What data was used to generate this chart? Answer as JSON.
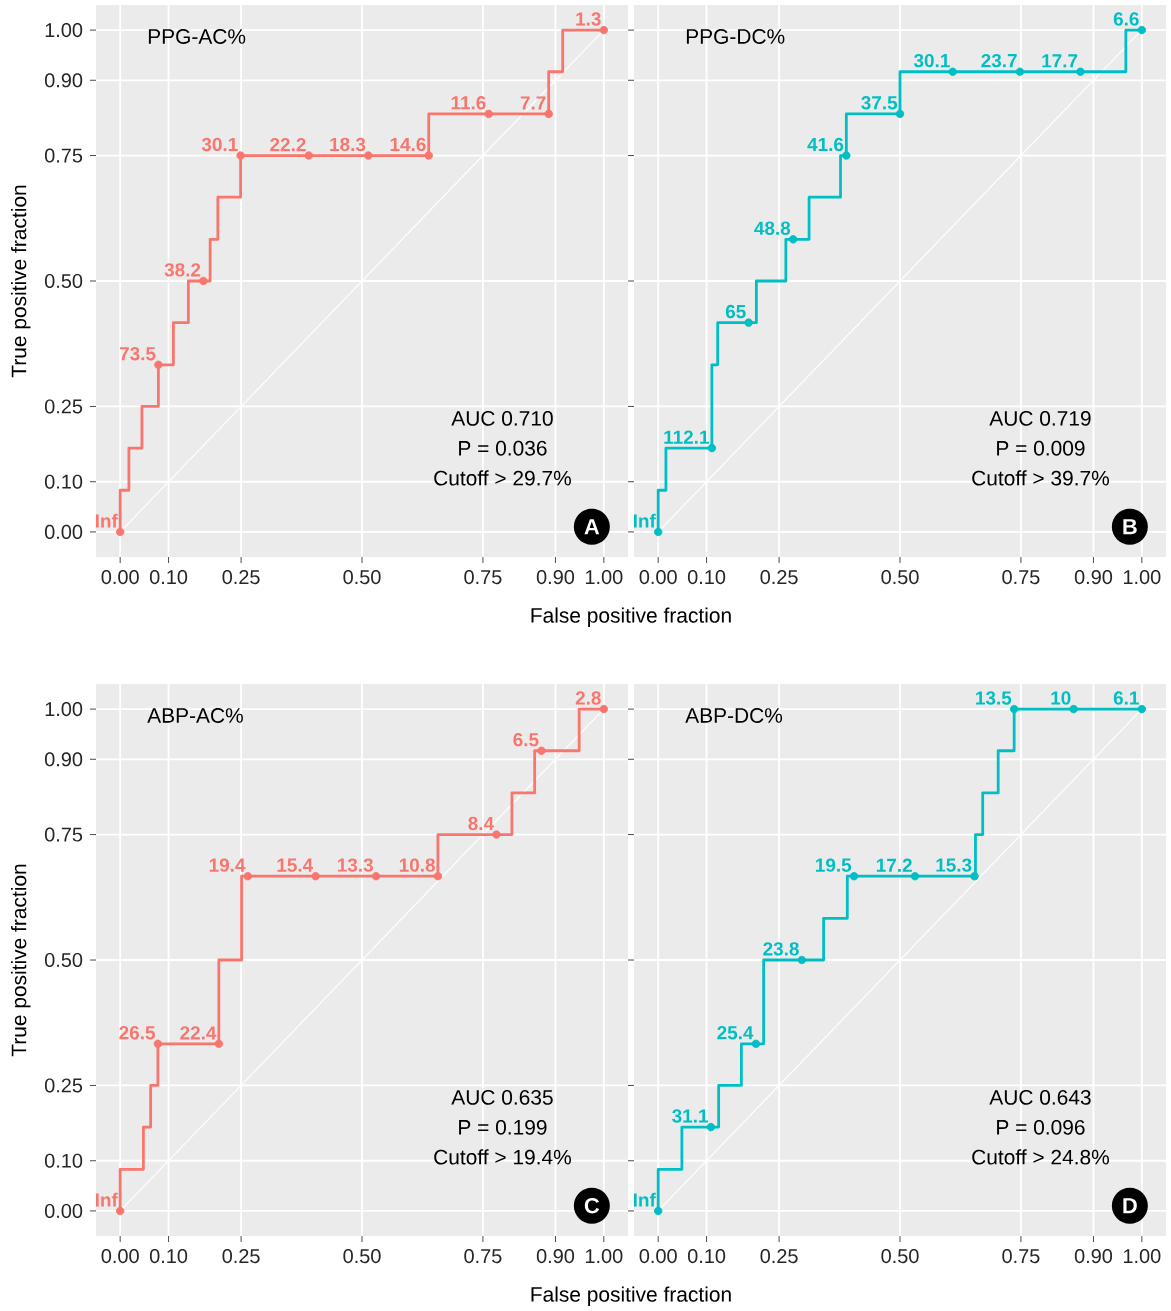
{
  "chart_data": [
    {
      "type": "step",
      "title": "PPG-AC%",
      "xlabel": "False positive fraction",
      "ylabel": "True positive fraction",
      "xlim": [
        -0.05,
        1.05
      ],
      "ylim": [
        -0.05,
        1.05
      ],
      "xticks": [
        {
          "value": 0,
          "label": "0.00"
        },
        {
          "value": 0.1,
          "label": "0.10"
        },
        {
          "value": 0.25,
          "label": "0.25"
        },
        {
          "value": 0.5,
          "label": "0.50"
        },
        {
          "value": 0.75,
          "label": "0.75"
        },
        {
          "value": 0.9,
          "label": "0.90"
        },
        {
          "value": 1,
          "label": "1.00"
        }
      ],
      "yticks": [
        {
          "value": 0,
          "label": "0.00"
        },
        {
          "value": 0.1,
          "label": "0.10"
        },
        {
          "value": 0.25,
          "label": "0.25"
        },
        {
          "value": 0.5,
          "label": "0.50"
        },
        {
          "value": 0.75,
          "label": "0.75"
        },
        {
          "value": 0.9,
          "label": "0.90"
        },
        {
          "value": 1,
          "label": "1.00"
        }
      ],
      "grid": true,
      "annotations": [
        "AUC 0.710",
        "P = 0.036",
        "Cutoff > 29.7%",
        "A",
        {
          "text": "Inf",
          "x": 0,
          "y": 0
        },
        {
          "text": "73.5",
          "x": 0.079,
          "y": 0.333
        },
        {
          "text": "38.2",
          "x": 0.172,
          "y": 0.5
        },
        {
          "text": "30.1",
          "x": 0.249,
          "y": 0.75
        },
        {
          "text": "22.2",
          "x": 0.39,
          "y": 0.75
        },
        {
          "text": "18.3",
          "x": 0.513,
          "y": 0.75
        },
        {
          "text": "14.6",
          "x": 0.638,
          "y": 0.75
        },
        {
          "text": "11.6",
          "x": 0.762,
          "y": 0.833
        },
        {
          "text": "7.7",
          "x": 0.886,
          "y": 0.833
        },
        {
          "text": "1.3",
          "x": 1,
          "y": 1
        }
      ],
      "series": [
        {
          "type": "line",
          "color": "#ffffff",
          "x": [
            0,
            1
          ],
          "values": [
            0,
            1
          ]
        },
        {
          "color": "#f8766d",
          "x": [
            0,
            0.018,
            0.045,
            0.079,
            0.11,
            0.141,
            0.186,
            0.202,
            0.249,
            0.638,
            0.886,
            0.915,
            1
          ],
          "values": [
            0,
            0.083,
            0.167,
            0.25,
            0.333,
            0.417,
            0.5,
            0.583,
            0.667,
            0.75,
            0.833,
            0.917,
            1
          ]
        },
        {
          "type": "scatter",
          "marker": "circle",
          "color": "#f8766d",
          "x": [
            0,
            0.079,
            0.172,
            0.249,
            0.39,
            0.513,
            0.638,
            0.762,
            0.886,
            1
          ],
          "values": [
            0,
            0.333,
            0.5,
            0.75,
            0.75,
            0.75,
            0.75,
            0.833,
            0.833,
            1
          ]
        }
      ]
    },
    {
      "type": "step",
      "title": "PPG-DC%",
      "xlim": [
        -0.05,
        1.05
      ],
      "ylim": [
        -0.05,
        1.05
      ],
      "tick_labels": "x",
      "xticks": [
        {
          "value": 0,
          "label": "0.00"
        },
        {
          "value": 0.1,
          "label": "0.10"
        },
        {
          "value": 0.25,
          "label": "0.25"
        },
        {
          "value": 0.5,
          "label": "0.50"
        },
        {
          "value": 0.75,
          "label": "0.75"
        },
        {
          "value": 0.9,
          "label": "0.90"
        },
        {
          "value": 1,
          "label": "1.00"
        }
      ],
      "yticks": [
        {
          "value": 0,
          "label": null
        },
        {
          "value": 0.1,
          "label": null
        },
        {
          "value": 0.25,
          "label": null
        },
        {
          "value": 0.5,
          "label": null
        },
        {
          "value": 0.75,
          "label": null
        },
        {
          "value": 0.9,
          "label": null
        },
        {
          "value": 1,
          "label": null
        }
      ],
      "grid": true,
      "annotations": [
        "AUC 0.719",
        "P = 0.009",
        "Cutoff > 39.7%",
        "B",
        {
          "text": "Inf",
          "x": 0,
          "y": 0
        },
        {
          "text": "112.1",
          "x": 0.111,
          "y": 0.167
        },
        {
          "text": "65",
          "x": 0.187,
          "y": 0.417
        },
        {
          "text": "48.8",
          "x": 0.279,
          "y": 0.583
        },
        {
          "text": "41.6",
          "x": 0.389,
          "y": 0.75
        },
        {
          "text": "37.5",
          "x": 0.5,
          "y": 0.833
        },
        {
          "text": "30.1",
          "x": 0.609,
          "y": 0.917
        },
        {
          "text": "23.7",
          "x": 0.748,
          "y": 0.917
        },
        {
          "text": "17.7",
          "x": 0.873,
          "y": 0.917
        },
        {
          "text": "6.6",
          "x": 1,
          "y": 1
        }
      ],
      "series": [
        {
          "type": "line",
          "color": "#ffffff",
          "x": [
            0,
            1
          ],
          "values": [
            0,
            1
          ]
        },
        {
          "color": "#00bfc4",
          "x": [
            0,
            0.016,
            0.111,
            0.123,
            0.203,
            0.264,
            0.312,
            0.377,
            0.389,
            0.5,
            0.967,
            1
          ],
          "values": [
            0,
            0.083,
            0.167,
            0.333,
            0.417,
            0.5,
            0.583,
            0.667,
            0.75,
            0.833,
            0.917,
            1
          ]
        },
        {
          "type": "scatter",
          "marker": "circle",
          "color": "#00bfc4",
          "x": [
            0,
            0.111,
            0.187,
            0.279,
            0.389,
            0.5,
            0.609,
            0.748,
            0.873,
            1
          ],
          "values": [
            0,
            0.167,
            0.417,
            0.583,
            0.75,
            0.833,
            0.917,
            0.917,
            0.917,
            1
          ]
        }
      ]
    },
    {
      "type": "step",
      "title": "ABP-AC%",
      "xlabel": "False positive fraction",
      "ylabel": "True positive fraction",
      "xlim": [
        -0.05,
        1.05
      ],
      "ylim": [
        -0.05,
        1.05
      ],
      "xticks": [
        {
          "value": 0,
          "label": "0.00"
        },
        {
          "value": 0.1,
          "label": "0.10"
        },
        {
          "value": 0.25,
          "label": "0.25"
        },
        {
          "value": 0.5,
          "label": "0.50"
        },
        {
          "value": 0.75,
          "label": "0.75"
        },
        {
          "value": 0.9,
          "label": "0.90"
        },
        {
          "value": 1,
          "label": "1.00"
        }
      ],
      "yticks": [
        {
          "value": 0,
          "label": "0.00"
        },
        {
          "value": 0.1,
          "label": "0.10"
        },
        {
          "value": 0.25,
          "label": "0.25"
        },
        {
          "value": 0.5,
          "label": "0.50"
        },
        {
          "value": 0.75,
          "label": "0.75"
        },
        {
          "value": 0.9,
          "label": "0.90"
        },
        {
          "value": 1,
          "label": "1.00"
        }
      ],
      "grid": true,
      "annotations": [
        "AUC 0.635",
        "P = 0.199",
        "Cutoff > 19.4%",
        "C",
        {
          "text": "Inf",
          "x": 0,
          "y": 0
        },
        {
          "text": "26.5",
          "x": 0.078,
          "y": 0.333
        },
        {
          "text": "22.4",
          "x": 0.204,
          "y": 0.333
        },
        {
          "text": "19.4",
          "x": 0.264,
          "y": 0.667
        },
        {
          "text": "15.4",
          "x": 0.404,
          "y": 0.667
        },
        {
          "text": "13.3",
          "x": 0.529,
          "y": 0.667
        },
        {
          "text": "10.8",
          "x": 0.657,
          "y": 0.667
        },
        {
          "text": "8.4",
          "x": 0.778,
          "y": 0.75
        },
        {
          "text": "6.5",
          "x": 0.871,
          "y": 0.917
        },
        {
          "text": "2.8",
          "x": 1,
          "y": 1
        }
      ],
      "series": [
        {
          "type": "line",
          "color": "#ffffff",
          "x": [
            0,
            1
          ],
          "values": [
            0,
            1
          ]
        },
        {
          "color": "#f8766d",
          "x": [
            0,
            0.048,
            0.063,
            0.078,
            0.204,
            0.251,
            0.657,
            0.81,
            0.857,
            0.949,
            1
          ],
          "values": [
            0,
            0.083,
            0.167,
            0.25,
            0.333,
            0.5,
            0.667,
            0.75,
            0.833,
            0.917,
            1
          ]
        },
        {
          "type": "scatter",
          "marker": "circle",
          "color": "#f8766d",
          "x": [
            0,
            0.078,
            0.204,
            0.264,
            0.404,
            0.529,
            0.657,
            0.778,
            0.871,
            1
          ],
          "values": [
            0,
            0.333,
            0.333,
            0.667,
            0.667,
            0.667,
            0.667,
            0.75,
            0.917,
            1
          ]
        }
      ]
    },
    {
      "type": "step",
      "title": "ABP-DC%",
      "xlim": [
        -0.05,
        1.05
      ],
      "ylim": [
        -0.05,
        1.05
      ],
      "tick_labels": "x",
      "xticks": [
        {
          "value": 0,
          "label": "0.00"
        },
        {
          "value": 0.1,
          "label": "0.10"
        },
        {
          "value": 0.25,
          "label": "0.25"
        },
        {
          "value": 0.5,
          "label": "0.50"
        },
        {
          "value": 0.75,
          "label": "0.75"
        },
        {
          "value": 0.9,
          "label": "0.90"
        },
        {
          "value": 1,
          "label": "1.00"
        }
      ],
      "yticks": [
        {
          "value": 0,
          "label": null
        },
        {
          "value": 0.1,
          "label": null
        },
        {
          "value": 0.25,
          "label": null
        },
        {
          "value": 0.5,
          "label": null
        },
        {
          "value": 0.75,
          "label": null
        },
        {
          "value": 0.9,
          "label": null
        },
        {
          "value": 1,
          "label": null
        }
      ],
      "grid": true,
      "annotations": [
        "AUC 0.643",
        "P = 0.096",
        "Cutoff > 24.8%",
        "D",
        {
          "text": "Inf",
          "x": 0,
          "y": 0
        },
        {
          "text": "31.1",
          "x": 0.109,
          "y": 0.167
        },
        {
          "text": "25.4",
          "x": 0.202,
          "y": 0.333
        },
        {
          "text": "23.8",
          "x": 0.297,
          "y": 0.5
        },
        {
          "text": "19.5",
          "x": 0.405,
          "y": 0.667
        },
        {
          "text": "17.2",
          "x": 0.531,
          "y": 0.667
        },
        {
          "text": "15.3",
          "x": 0.654,
          "y": 0.667
        },
        {
          "text": "13.5",
          "x": 0.736,
          "y": 1
        },
        {
          "text": "10",
          "x": 0.859,
          "y": 1
        },
        {
          "text": "6.1",
          "x": 1,
          "y": 1
        }
      ],
      "series": [
        {
          "type": "line",
          "color": "#ffffff",
          "x": [
            0,
            1
          ],
          "values": [
            0,
            1
          ]
        },
        {
          "color": "#00bfc4",
          "x": [
            0,
            0.049,
            0.125,
            0.172,
            0.218,
            0.342,
            0.391,
            0.656,
            0.671,
            0.703,
            0.736,
            1
          ],
          "values": [
            0,
            0.083,
            0.167,
            0.25,
            0.333,
            0.5,
            0.583,
            0.667,
            0.75,
            0.833,
            0.917,
            1
          ]
        },
        {
          "type": "scatter",
          "marker": "circle",
          "color": "#00bfc4",
          "x": [
            0,
            0.109,
            0.202,
            0.297,
            0.405,
            0.531,
            0.654,
            0.736,
            0.859,
            1
          ],
          "values": [
            0,
            0.167,
            0.333,
            0.5,
            0.667,
            0.667,
            0.667,
            1,
            1,
            1
          ]
        }
      ]
    }
  ]
}
